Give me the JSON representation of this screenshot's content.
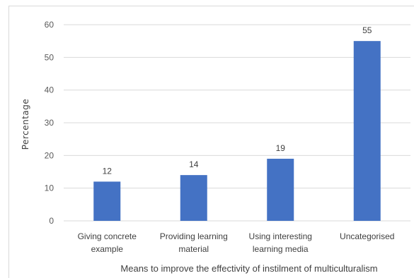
{
  "chart_data": {
    "type": "bar",
    "categories": [
      [
        "Giving concrete",
        "example"
      ],
      [
        "Providing learning",
        "material"
      ],
      [
        "Using interesting",
        "learning media"
      ],
      [
        "Uncategorised"
      ]
    ],
    "values": [
      12,
      14,
      19,
      55
    ],
    "data_labels": [
      "12",
      "14",
      "19",
      "55"
    ],
    "xlabel": "Means to improve the effectivity of instilment of multiculturalism",
    "ylabel": "Percentage",
    "ylim": [
      0,
      60
    ],
    "yticks": [
      "0",
      "10",
      "20",
      "30",
      "40",
      "50",
      "60"
    ],
    "grid": true,
    "bar_color": "#4472c4",
    "grid_color": "#d9d9d9"
  }
}
